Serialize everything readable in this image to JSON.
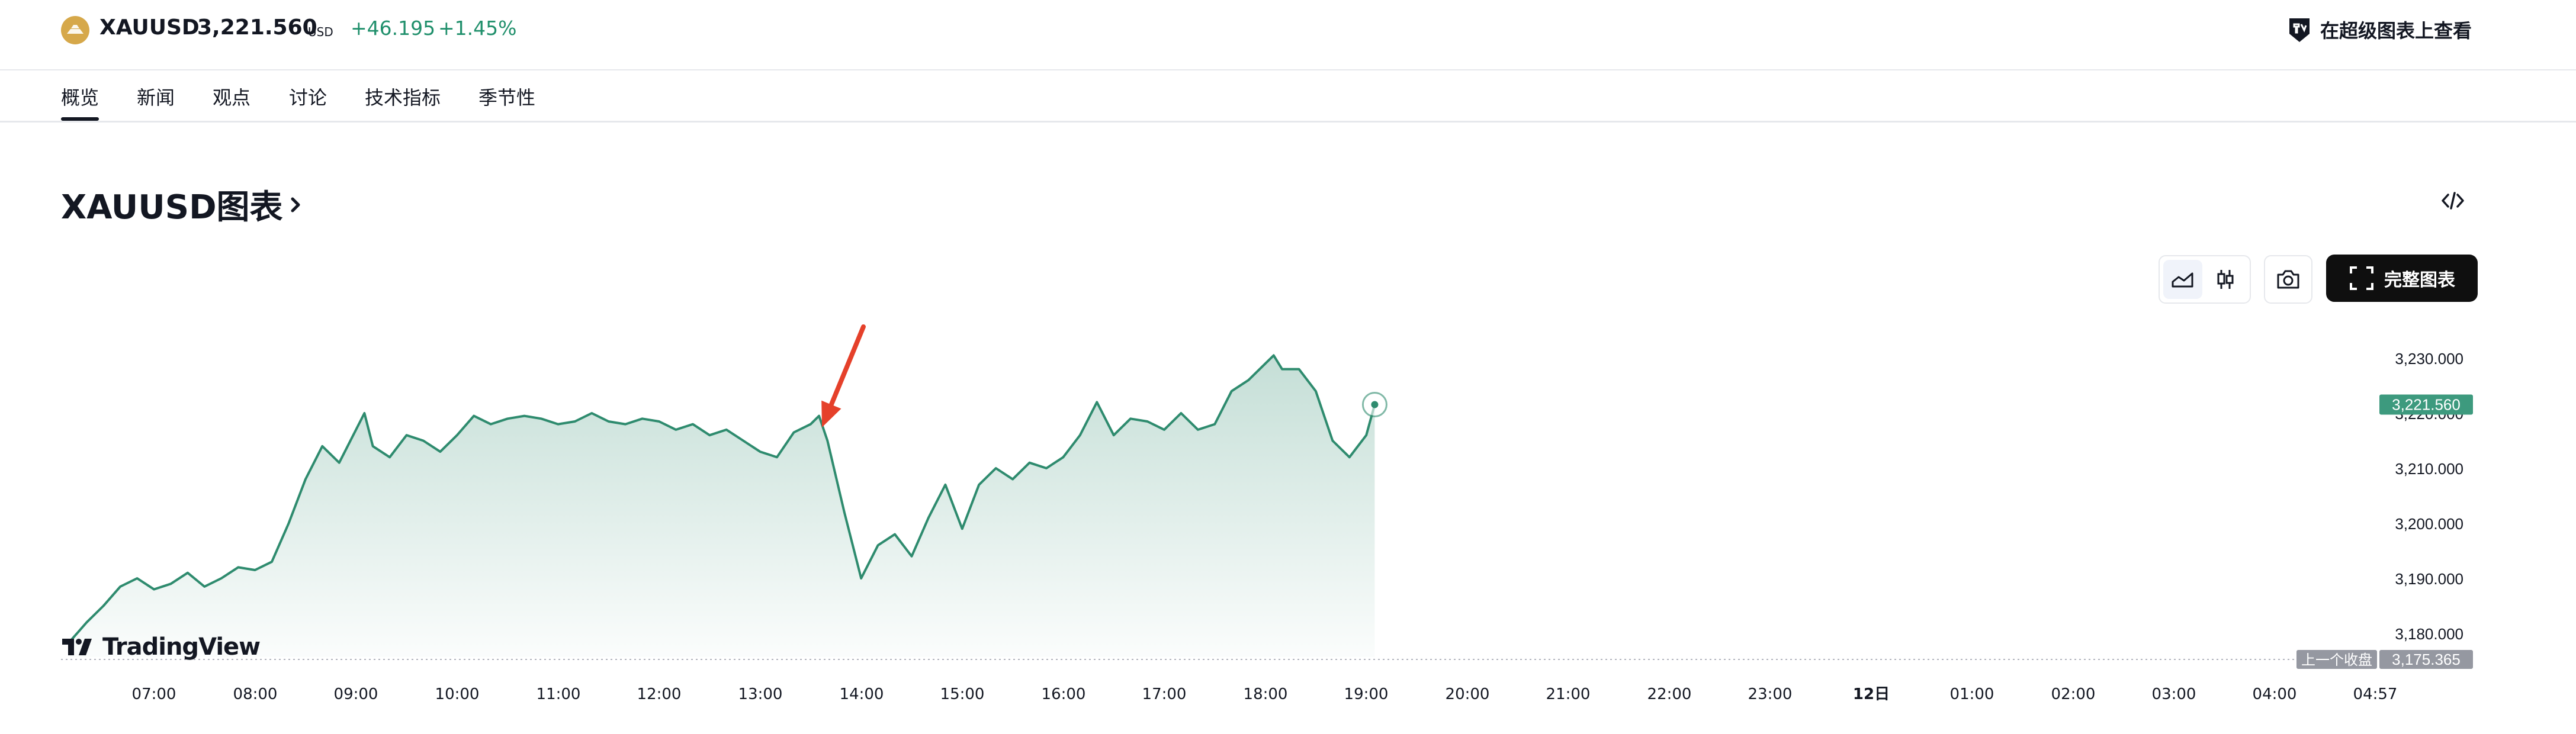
{
  "header": {
    "symbol": "XAUUSD",
    "price": "3,221.560",
    "currency": "USD",
    "change": "+46.195",
    "change_pct": "+1.45%",
    "super_chart_label": "在超级图表上查看",
    "change_color": "#1f8f6b"
  },
  "tabs": [
    {
      "label": "概览",
      "active": true
    },
    {
      "label": "新闻"
    },
    {
      "label": "观点"
    },
    {
      "label": "讨论"
    },
    {
      "label": "技术指标"
    },
    {
      "label": "季节性"
    }
  ],
  "section": {
    "title": "XAUUSD图表"
  },
  "toolbar": {
    "full_chart_label": "完整图表",
    "chart_types": [
      "area",
      "candles"
    ],
    "selected_chart_type": "area"
  },
  "branding": {
    "tradingview_label": "TradingView"
  },
  "chart_data": {
    "type": "area",
    "x": [
      "06:10",
      "06:20",
      "06:30",
      "06:40",
      "06:50",
      "07:00",
      "07:10",
      "07:20",
      "07:30",
      "07:40",
      "07:50",
      "08:00",
      "08:10",
      "08:20",
      "08:30",
      "08:40",
      "08:50",
      "09:00",
      "09:05",
      "09:10",
      "09:20",
      "09:30",
      "09:40",
      "09:50",
      "10:00",
      "10:10",
      "10:20",
      "10:30",
      "10:40",
      "10:50",
      "11:00",
      "11:10",
      "11:20",
      "11:30",
      "11:40",
      "11:50",
      "12:00",
      "12:10",
      "12:20",
      "12:30",
      "12:40",
      "12:50",
      "13:00",
      "13:10",
      "13:20",
      "13:30",
      "13:35",
      "13:40",
      "13:50",
      "14:00",
      "14:10",
      "14:20",
      "14:30",
      "14:40",
      "14:50",
      "15:00",
      "15:10",
      "15:20",
      "15:30",
      "15:40",
      "15:50",
      "16:00",
      "16:10",
      "16:20",
      "16:30",
      "16:40",
      "16:50",
      "17:00",
      "17:10",
      "17:20",
      "17:30",
      "17:40",
      "17:50",
      "18:00",
      "18:05",
      "18:10",
      "18:20",
      "18:30",
      "18:40",
      "18:50",
      "19:00",
      "19:05"
    ],
    "values": [
      3178.5,
      3182,
      3185,
      3188.5,
      3190,
      3188,
      3189,
      3191,
      3188.5,
      3190,
      3192,
      3191.5,
      3193,
      3200,
      3208,
      3214,
      3211,
      3217,
      3220,
      3214,
      3212,
      3216,
      3215,
      3213,
      3216,
      3219.5,
      3218,
      3219,
      3219.5,
      3219,
      3218,
      3218.5,
      3220,
      3218.5,
      3218,
      3219,
      3218.5,
      3217,
      3218,
      3216,
      3217,
      3215,
      3213,
      3212,
      3216.5,
      3218,
      3219.5,
      3215,
      3202,
      3190,
      3196,
      3198,
      3194,
      3201,
      3207,
      3199,
      3207,
      3210,
      3208,
      3211,
      3210,
      3212,
      3216,
      3222,
      3216,
      3219,
      3218.5,
      3217,
      3220,
      3217,
      3218,
      3224,
      3226,
      3229,
      3230.5,
      3228,
      3228,
      3224,
      3215,
      3212,
      3216,
      3221.56
    ],
    "ylim": [
      3173,
      3234
    ],
    "y_ticks": [
      "3,230.000",
      "3,220.000",
      "3,210.000",
      "3,200.000",
      "3,190.000",
      "3,180.000"
    ],
    "x_ticks": [
      "07:00",
      "08:00",
      "09:00",
      "10:00",
      "11:00",
      "12:00",
      "13:00",
      "14:00",
      "15:00",
      "16:00",
      "17:00",
      "18:00",
      "19:00",
      "20:00",
      "21:00",
      "22:00",
      "23:00",
      "12日",
      "01:00",
      "02:00",
      "03:00",
      "04:00",
      "04:57"
    ],
    "last_price_label": "3,221.560",
    "prev_close_label": "上一个收盘",
    "prev_close_value": "3,175.365",
    "line_color": "#2e8b6e",
    "last_price_color": "#3d9a7e",
    "arrow_color": "#e5402a"
  }
}
